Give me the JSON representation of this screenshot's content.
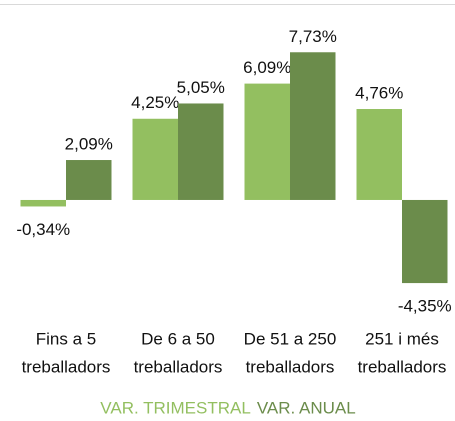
{
  "chart_data": {
    "type": "bar",
    "categories": [
      [
        "Fins a 5",
        "treballadors"
      ],
      [
        "De 6 a 50",
        "treballadors"
      ],
      [
        "De 51 a 250",
        "treballadors"
      ],
      [
        "251 i més",
        "treballadors"
      ]
    ],
    "series": [
      {
        "name": "VAR. TRIMESTRAL",
        "color": "#93bf60",
        "values": [
          -0.34,
          4.25,
          6.09,
          4.76
        ],
        "value_labels": [
          "-0,34%",
          "4,25%",
          "6,09%",
          "4,76%"
        ]
      },
      {
        "name": "VAR. ANUAL",
        "color": "#6b8c4b",
        "values": [
          2.09,
          5.05,
          7.73,
          -4.35
        ],
        "value_labels": [
          "2,09%",
          "5,05%",
          "7,73%",
          "-4,35%"
        ]
      }
    ],
    "ylim": [
      -5,
      9
    ],
    "legend": "bottom"
  }
}
